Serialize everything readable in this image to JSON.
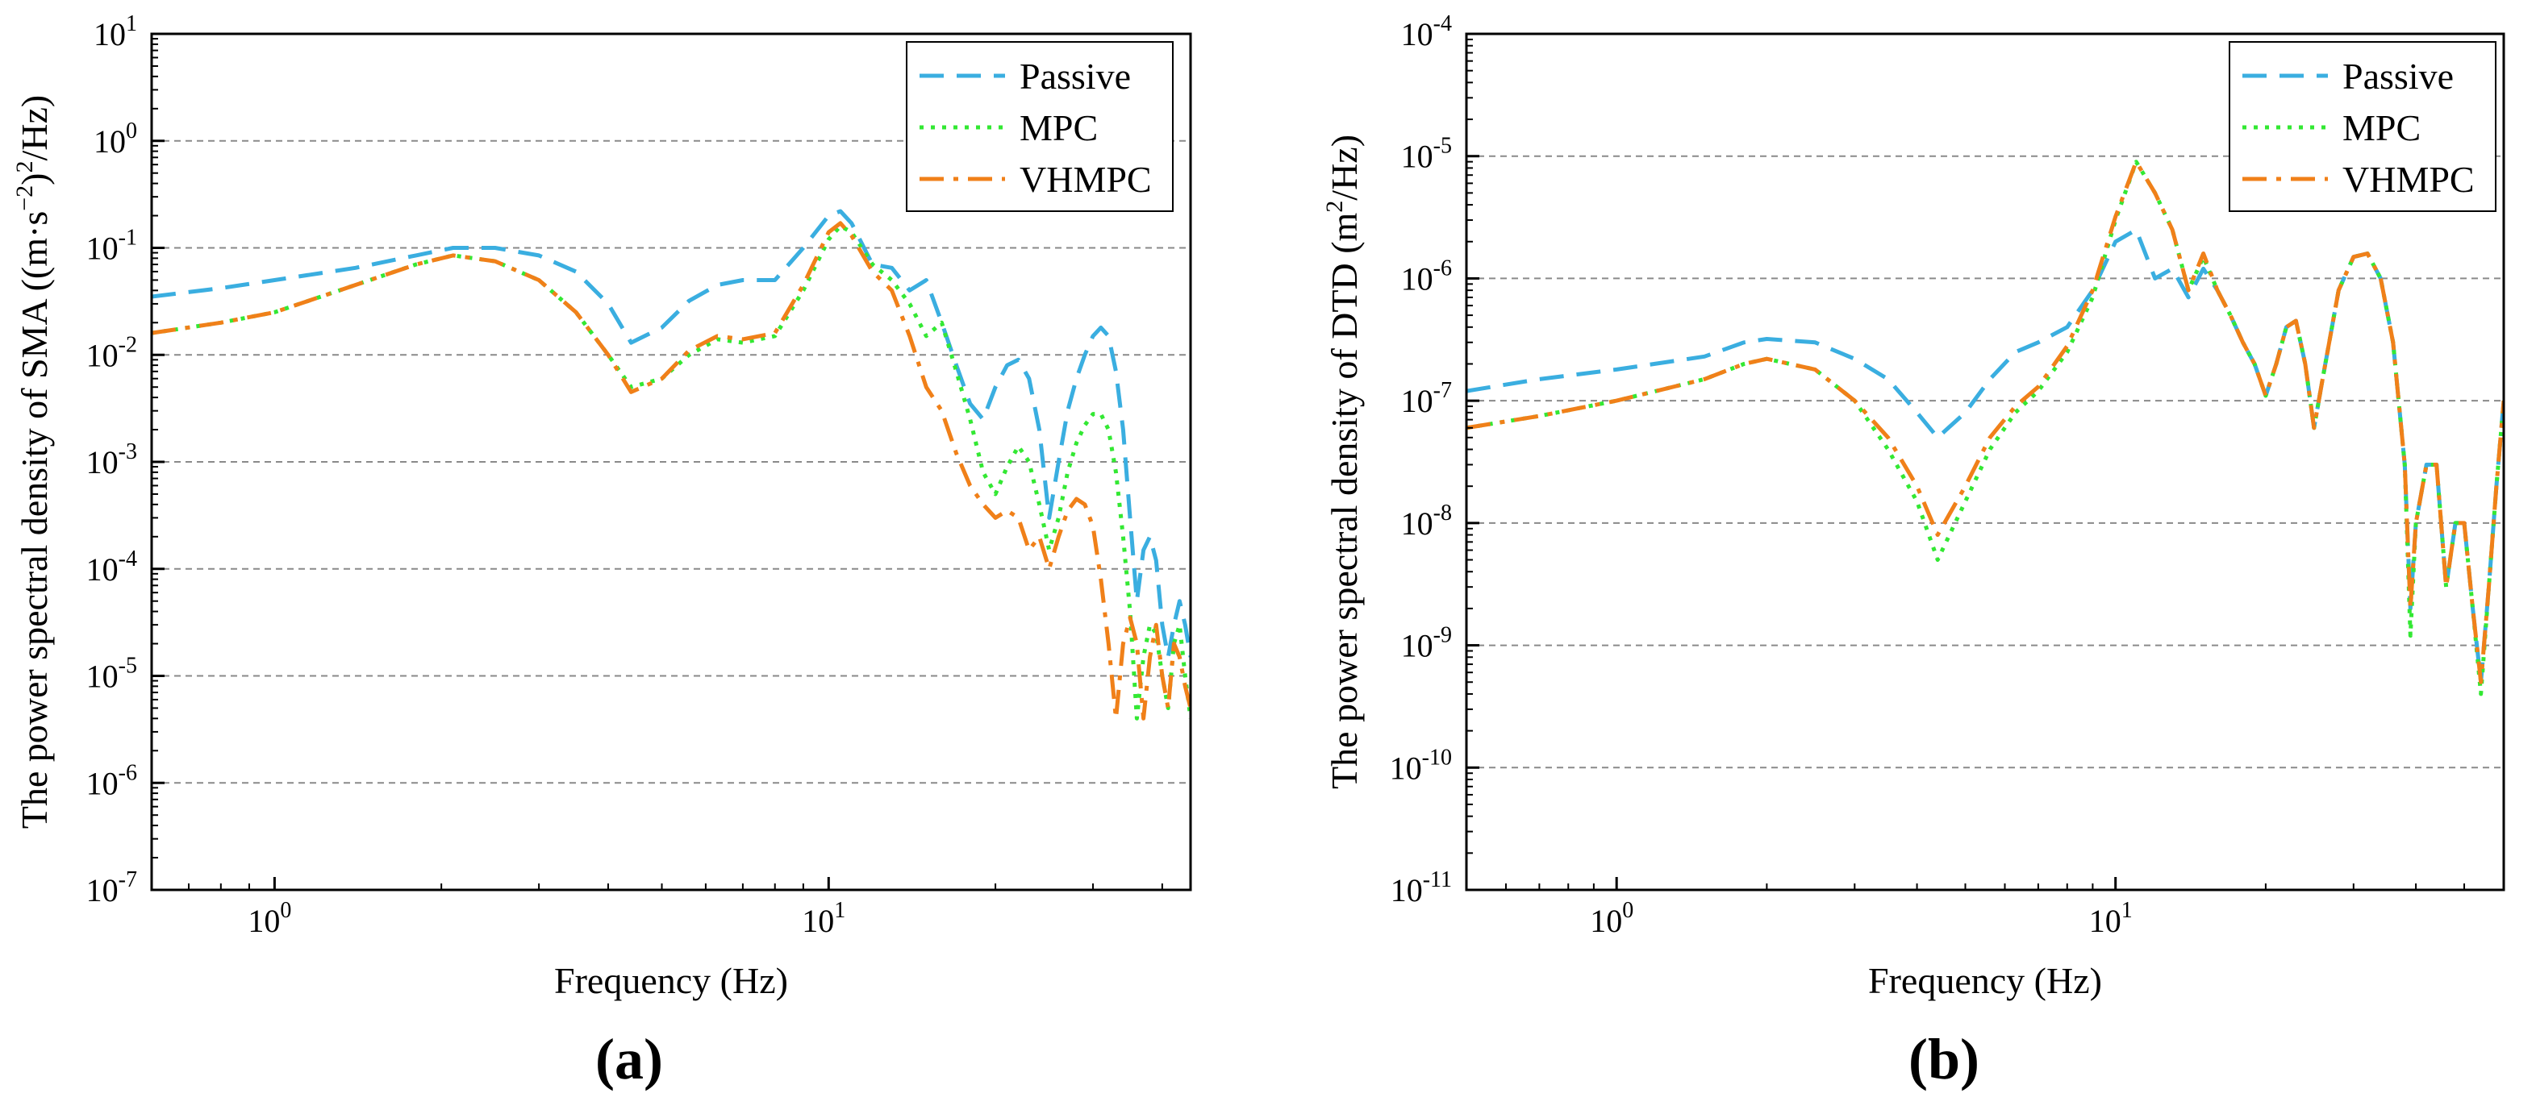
{
  "figure": {
    "labels": [
      "(a)",
      "(b)"
    ]
  },
  "colors": {
    "passive": "#3aaee0",
    "mpc": "#33e833",
    "vhmpc": "#f08019",
    "grid": "#8a8a8a"
  },
  "chart_data": [
    {
      "type": "line",
      "xscale": "log",
      "yscale": "log",
      "title": "",
      "xlabel": "Frequency (Hz)",
      "ylabel_main": "The power spectral density of SMA ((m·s",
      "ylabel_sup1": "−2",
      "ylabel_mid": ")",
      "ylabel_sup2": "2",
      "ylabel_end": "/Hz)",
      "xlim": [
        0.6,
        45
      ],
      "ylim": [
        1e-07,
        10
      ],
      "xticks": [
        {
          "value": 1,
          "mantissa": "10",
          "exp": "0"
        },
        {
          "value": 10,
          "mantissa": "10",
          "exp": "1"
        }
      ],
      "yticks": [
        {
          "value": 1e-07,
          "mantissa": "10",
          "exp": "-7"
        },
        {
          "value": 1e-06,
          "mantissa": "10",
          "exp": "-6"
        },
        {
          "value": 1e-05,
          "mantissa": "10",
          "exp": "-5"
        },
        {
          "value": 0.0001,
          "mantissa": "10",
          "exp": "-4"
        },
        {
          "value": 0.001,
          "mantissa": "10",
          "exp": "-3"
        },
        {
          "value": 0.01,
          "mantissa": "10",
          "exp": "-2"
        },
        {
          "value": 0.1,
          "mantissa": "10",
          "exp": "-1"
        },
        {
          "value": 1,
          "mantissa": "10",
          "exp": "0"
        },
        {
          "value": 10,
          "mantissa": "10",
          "exp": "1"
        }
      ],
      "grid": "horizontal-dashed",
      "legend_position": "top-right",
      "series": [
        {
          "name": "Passive",
          "style": "dash",
          "x": [
            0.6,
            0.8,
            1.0,
            1.4,
            1.8,
            2.1,
            2.5,
            3.0,
            3.5,
            4.0,
            4.4,
            5.0,
            5.6,
            6.3,
            7.0,
            8.0,
            9.0,
            10.0,
            10.5,
            11.0,
            12.0,
            13.0,
            14.0,
            15.0,
            16.0,
            17.0,
            18.0,
            19.0,
            20.0,
            21.0,
            22.0,
            23.0,
            24.0,
            25.0,
            26.0,
            27.0,
            28.0,
            29.0,
            30.0,
            31.0,
            32.0,
            33.0,
            34.0,
            35.0,
            36.0,
            37.0,
            38.0,
            39.0,
            40.0,
            41.0,
            42.0,
            43.0,
            44.0,
            45.0
          ],
          "y": [
            0.035,
            0.042,
            0.05,
            0.065,
            0.085,
            0.1,
            0.1,
            0.085,
            0.06,
            0.03,
            0.013,
            0.018,
            0.032,
            0.045,
            0.05,
            0.05,
            0.1,
            0.2,
            0.22,
            0.17,
            0.07,
            0.065,
            0.04,
            0.05,
            0.02,
            0.008,
            0.0035,
            0.0025,
            0.005,
            0.008,
            0.009,
            0.006,
            0.002,
            0.0003,
            0.001,
            0.003,
            0.006,
            0.01,
            0.015,
            0.018,
            0.015,
            0.007,
            0.002,
            0.0003,
            5e-05,
            0.00015,
            0.0002,
            0.00012,
            3e-05,
            1.5e-05,
            3e-05,
            5e-05,
            3e-05,
            1.5e-05
          ]
        },
        {
          "name": "MPC",
          "style": "dot",
          "x": [
            0.6,
            0.8,
            1.0,
            1.4,
            1.8,
            2.1,
            2.5,
            3.0,
            3.5,
            4.0,
            4.4,
            5.0,
            5.6,
            6.3,
            7.0,
            8.0,
            9.0,
            10.0,
            10.5,
            11.0,
            12.0,
            13.0,
            14.0,
            15.0,
            16.0,
            17.0,
            18.0,
            19.0,
            20.0,
            21.0,
            22.0,
            23.0,
            24.0,
            25.0,
            26.0,
            27.0,
            28.0,
            29.0,
            30.0,
            31.0,
            32.0,
            33.0,
            34.0,
            35.0,
            36.0,
            37.0,
            38.0,
            39.0,
            40.0,
            41.0,
            42.0,
            43.0,
            44.0,
            45.0
          ],
          "y": [
            0.016,
            0.02,
            0.025,
            0.045,
            0.07,
            0.085,
            0.075,
            0.05,
            0.025,
            0.01,
            0.005,
            0.006,
            0.01,
            0.014,
            0.013,
            0.015,
            0.04,
            0.12,
            0.16,
            0.14,
            0.07,
            0.05,
            0.03,
            0.015,
            0.02,
            0.007,
            0.0025,
            0.0008,
            0.0005,
            0.0009,
            0.0014,
            0.001,
            0.0004,
            0.00015,
            0.0003,
            0.0008,
            0.0015,
            0.0022,
            0.0028,
            0.0028,
            0.002,
            0.0008,
            0.0002,
            4e-05,
            4e-06,
            1.5e-05,
            3e-05,
            2.5e-05,
            1e-05,
            5e-06,
            2e-05,
            3e-05,
            1e-05,
            4e-06
          ]
        },
        {
          "name": "VHMPC",
          "style": "dashdot",
          "x": [
            0.6,
            0.8,
            1.0,
            1.4,
            1.8,
            2.1,
            2.5,
            3.0,
            3.5,
            4.0,
            4.4,
            5.0,
            5.6,
            6.3,
            7.0,
            8.0,
            9.0,
            10.0,
            10.5,
            11.0,
            12.0,
            13.0,
            14.0,
            15.0,
            16.0,
            17.0,
            18.0,
            19.0,
            20.0,
            21.0,
            22.0,
            23.0,
            24.0,
            25.0,
            26.0,
            27.0,
            28.0,
            29.0,
            30.0,
            31.0,
            32.0,
            33.0,
            34.0,
            35.0,
            36.0,
            37.0,
            38.0,
            39.0,
            40.0,
            41.0,
            42.0,
            43.0,
            44.0,
            45.0
          ],
          "y": [
            0.016,
            0.02,
            0.025,
            0.045,
            0.07,
            0.085,
            0.075,
            0.05,
            0.025,
            0.01,
            0.0045,
            0.006,
            0.011,
            0.015,
            0.014,
            0.016,
            0.045,
            0.14,
            0.17,
            0.13,
            0.06,
            0.04,
            0.015,
            0.005,
            0.003,
            0.0012,
            0.0006,
            0.0004,
            0.0003,
            0.00035,
            0.0003,
            0.00015,
            0.0002,
            0.0001,
            0.0002,
            0.00035,
            0.00045,
            0.0004,
            0.00025,
            8e-05,
            2e-05,
            4e-06,
            2e-05,
            3.5e-05,
            2e-05,
            4e-06,
            1.5e-05,
            3e-05,
            1e-05,
            5e-06,
            2e-05,
            1.5e-05,
            8e-06,
            5e-06
          ]
        }
      ]
    },
    {
      "type": "line",
      "xscale": "log",
      "yscale": "log",
      "title": "",
      "xlabel": "Frequency (Hz)",
      "ylabel_main": "The power spectral density of DTD (m",
      "ylabel_sup1": "2",
      "ylabel_mid": "",
      "ylabel_sup2": "",
      "ylabel_end": "/Hz)",
      "xlim": [
        0.5,
        60
      ],
      "ylim": [
        1e-11,
        0.0001
      ],
      "xticks": [
        {
          "value": 1,
          "mantissa": "10",
          "exp": "0"
        },
        {
          "value": 10,
          "mantissa": "10",
          "exp": "1"
        }
      ],
      "yticks": [
        {
          "value": 1e-11,
          "mantissa": "10",
          "exp": "-11"
        },
        {
          "value": 1e-10,
          "mantissa": "10",
          "exp": "-10"
        },
        {
          "value": 1e-09,
          "mantissa": "10",
          "exp": "-9"
        },
        {
          "value": 1e-08,
          "mantissa": "10",
          "exp": "-8"
        },
        {
          "value": 1e-07,
          "mantissa": "10",
          "exp": "-7"
        },
        {
          "value": 1e-06,
          "mantissa": "10",
          "exp": "-6"
        },
        {
          "value": 1e-05,
          "mantissa": "10",
          "exp": "-5"
        },
        {
          "value": 0.0001,
          "mantissa": "10",
          "exp": "-4"
        }
      ],
      "grid": "horizontal-dashed",
      "legend_position": "top-right",
      "series": [
        {
          "name": "Passive",
          "style": "dash",
          "x": [
            0.5,
            0.7,
            1.0,
            1.5,
            1.8,
            2.0,
            2.5,
            3.0,
            3.5,
            4.0,
            4.4,
            5.0,
            5.6,
            6.3,
            7.0,
            8.0,
            9.0,
            10.0,
            11.0,
            12.0,
            13.0,
            14.0,
            15.0,
            16.0,
            17.0,
            18.0,
            19.0,
            20.0,
            21.0,
            22.0,
            23.0,
            24.0,
            25.0,
            26.0,
            28.0,
            30.0,
            32.0,
            34.0,
            36.0,
            38.0,
            39.0,
            40.0,
            42.0,
            44.0,
            46.0,
            48.0,
            50.0,
            52.0,
            54.0,
            56.0,
            58.0,
            60.0
          ],
          "y": [
            1.2e-07,
            1.5e-07,
            1.8e-07,
            2.3e-07,
            3e-07,
            3.2e-07,
            3e-07,
            2.2e-07,
            1.5e-07,
            8e-08,
            5e-08,
            8e-08,
            1.5e-07,
            2.5e-07,
            3e-07,
            4e-07,
            8e-07,
            2e-06,
            2.5e-06,
            1e-06,
            1.2e-06,
            7e-07,
            1.2e-06,
            8e-07,
            5e-07,
            3e-07,
            2e-07,
            1.1e-07,
            2e-07,
            4e-07,
            4.5e-07,
            2e-07,
            6e-08,
            1.5e-07,
            8e-07,
            1.5e-06,
            1.6e-06,
            1e-06,
            3e-07,
            3e-08,
            2e-09,
            1e-08,
            3e-08,
            3e-08,
            3e-09,
            1e-08,
            1e-08,
            2e-09,
            5e-10,
            3e-09,
            2e-08,
            1e-07
          ]
        },
        {
          "name": "MPC",
          "style": "dot",
          "x": [
            0.5,
            0.7,
            1.0,
            1.5,
            1.8,
            2.0,
            2.5,
            3.0,
            3.5,
            4.0,
            4.4,
            5.0,
            5.6,
            6.3,
            7.0,
            8.0,
            9.0,
            10.0,
            11.0,
            12.0,
            13.0,
            14.0,
            15.0,
            16.0,
            17.0,
            18.0,
            19.0,
            20.0,
            21.0,
            22.0,
            23.0,
            24.0,
            25.0,
            26.0,
            28.0,
            30.0,
            32.0,
            34.0,
            36.0,
            38.0,
            39.0,
            40.0,
            42.0,
            44.0,
            46.0,
            48.0,
            50.0,
            52.0,
            54.0,
            56.0,
            58.0,
            60.0
          ],
          "y": [
            6e-08,
            7.5e-08,
            1e-07,
            1.5e-07,
            2e-07,
            2.2e-07,
            1.8e-07,
            1e-07,
            4e-08,
            1.5e-08,
            5e-09,
            1.5e-08,
            4e-08,
            8e-08,
            1.2e-07,
            2.5e-07,
            7e-07,
            3e-06,
            9e-06,
            5e-06,
            2.5e-06,
            8e-07,
            1.5e-06,
            8e-07,
            5e-07,
            3e-07,
            2e-07,
            1.1e-07,
            2e-07,
            4e-07,
            4.5e-07,
            2e-07,
            6e-08,
            1.5e-07,
            8e-07,
            1.5e-06,
            1.6e-06,
            1e-06,
            3e-07,
            3e-08,
            1.2e-09,
            1e-08,
            3e-08,
            3e-08,
            3e-09,
            1e-08,
            1e-08,
            2e-09,
            4e-10,
            3e-09,
            2e-08,
            1e-07
          ]
        },
        {
          "name": "VHMPC",
          "style": "dashdot",
          "x": [
            0.5,
            0.7,
            1.0,
            1.5,
            1.8,
            2.0,
            2.5,
            3.0,
            3.5,
            4.0,
            4.4,
            5.0,
            5.6,
            6.3,
            7.0,
            8.0,
            9.0,
            10.0,
            11.0,
            12.0,
            13.0,
            14.0,
            15.0,
            16.0,
            17.0,
            18.0,
            19.0,
            20.0,
            21.0,
            22.0,
            23.0,
            24.0,
            25.0,
            26.0,
            28.0,
            30.0,
            32.0,
            34.0,
            36.0,
            38.0,
            39.0,
            40.0,
            42.0,
            44.0,
            46.0,
            48.0,
            50.0,
            52.0,
            54.0,
            56.0,
            58.0,
            60.0
          ],
          "y": [
            6e-08,
            7.5e-08,
            1e-07,
            1.5e-07,
            2e-07,
            2.2e-07,
            1.8e-07,
            1e-07,
            5e-08,
            2e-08,
            8e-09,
            2e-08,
            5e-08,
            9e-08,
            1.3e-07,
            2.8e-07,
            8e-07,
            3.2e-06,
            9e-06,
            5e-06,
            2.5e-06,
            8e-07,
            1.6e-06,
            8e-07,
            5e-07,
            3e-07,
            2e-07,
            1.1e-07,
            2e-07,
            4e-07,
            4.5e-07,
            2e-07,
            6e-08,
            1.5e-07,
            8e-07,
            1.5e-06,
            1.6e-06,
            1e-06,
            3e-07,
            3e-08,
            2e-09,
            1e-08,
            3e-08,
            3e-08,
            3e-09,
            1e-08,
            1e-08,
            2e-09,
            5e-10,
            3e-09,
            2e-08,
            1e-07
          ]
        }
      ]
    }
  ]
}
